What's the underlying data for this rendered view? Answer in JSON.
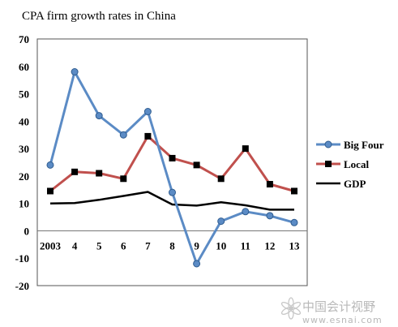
{
  "chart_data": {
    "type": "line",
    "title": "CPA firm growth rates in China",
    "xlabel": "",
    "ylabel": "",
    "categories": [
      "2003",
      "4",
      "5",
      "6",
      "7",
      "8",
      "9",
      "10",
      "11",
      "12",
      "13"
    ],
    "ylim": [
      -20,
      70
    ],
    "yticks": [
      -20,
      -10,
      0,
      10,
      20,
      30,
      40,
      50,
      60,
      70
    ],
    "grid": false,
    "legend_position": "right",
    "series": [
      {
        "name": "Big Four",
        "color": "#5b8bc5",
        "marker": "circle",
        "values": [
          24,
          58,
          42,
          35,
          43.5,
          14,
          -12,
          3.5,
          7,
          5.5,
          3
        ]
      },
      {
        "name": "Local",
        "color": "#c0504d",
        "marker": "square",
        "values": [
          14.5,
          21.5,
          21,
          19,
          34.5,
          26.5,
          24,
          19,
          30,
          17,
          14.5
        ]
      },
      {
        "name": "GDP",
        "color": "#000000",
        "marker": "none",
        "values": [
          10,
          10.1,
          11.3,
          12.7,
          14.2,
          9.6,
          9.2,
          10.4,
          9.3,
          7.7,
          7.7
        ]
      }
    ]
  },
  "watermark": {
    "logo_text": "中国会计视野",
    "url": "www.esnai.com"
  }
}
